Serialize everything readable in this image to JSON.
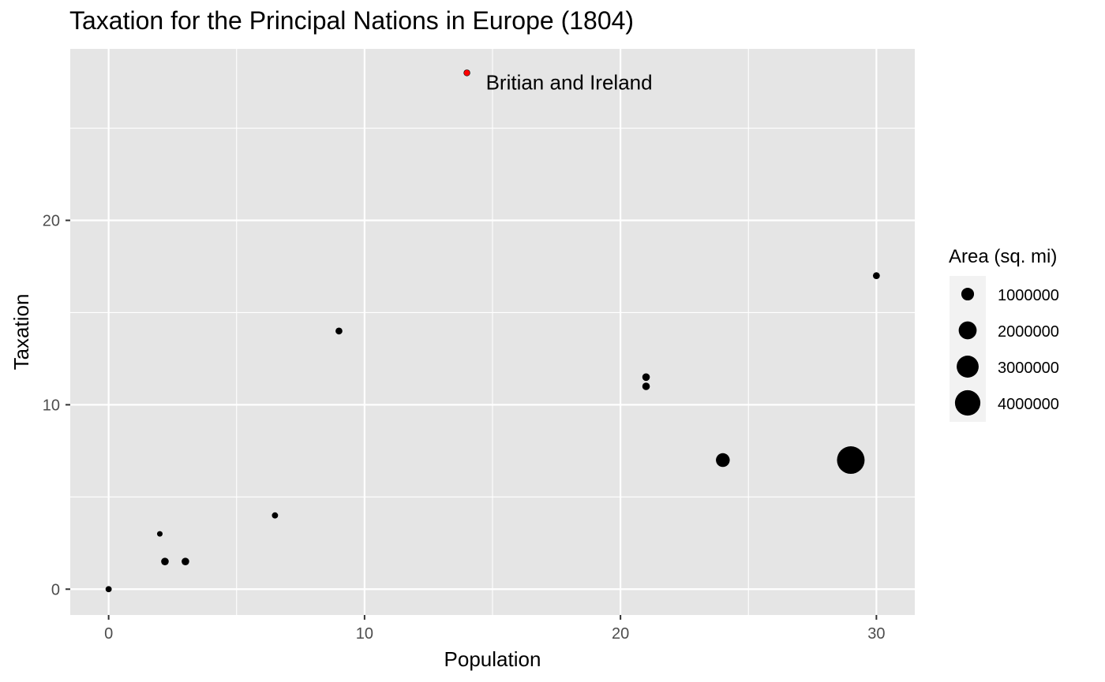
{
  "chart_data": {
    "type": "scatter",
    "title": "Taxation for the Principal Nations in Europe (1804)",
    "xlabel": "Population",
    "ylabel": "Taxation",
    "xlim": [
      -1.5,
      31.5
    ],
    "ylim": [
      -1.4,
      29.3
    ],
    "x_ticks": [
      0,
      10,
      20,
      30
    ],
    "y_ticks": [
      0,
      10,
      20
    ],
    "x_minor_grid": [
      5,
      15,
      25
    ],
    "y_minor_grid": [
      5,
      15,
      25
    ],
    "grid": true,
    "panel_color": "#e5e5e5",
    "grid_color": "#ffffff",
    "legend": {
      "title": "Area (sq. mi)",
      "position": "right",
      "entries": [
        {
          "label": "1000000",
          "area": 1000000
        },
        {
          "label": "2000000",
          "area": 2000000
        },
        {
          "label": "3000000",
          "area": 3000000
        },
        {
          "label": "4000000",
          "area": 4000000
        }
      ]
    },
    "points": [
      {
        "x": 0,
        "y": 0,
        "area": 200000,
        "color": "#000000"
      },
      {
        "x": 2,
        "y": 3,
        "area": 20000,
        "color": "#000000"
      },
      {
        "x": 2.2,
        "y": 1.5,
        "area": 300000,
        "color": "#000000"
      },
      {
        "x": 3,
        "y": 1.5,
        "area": 300000,
        "color": "#000000"
      },
      {
        "x": 6.5,
        "y": 4,
        "area": 200000,
        "color": "#000000"
      },
      {
        "x": 9,
        "y": 14,
        "area": 250000,
        "color": "#000000"
      },
      {
        "x": 14,
        "y": 28,
        "area": 200000,
        "color": "#ff0000",
        "label": "Britian and Ireland"
      },
      {
        "x": 21,
        "y": 11.5,
        "area": 300000,
        "color": "#000000"
      },
      {
        "x": 21,
        "y": 11,
        "area": 300000,
        "color": "#000000"
      },
      {
        "x": 24,
        "y": 7,
        "area": 1000000,
        "color": "#000000"
      },
      {
        "x": 29,
        "y": 7,
        "area": 4000000,
        "color": "#000000"
      },
      {
        "x": 30,
        "y": 17,
        "area": 250000,
        "color": "#000000"
      }
    ]
  }
}
